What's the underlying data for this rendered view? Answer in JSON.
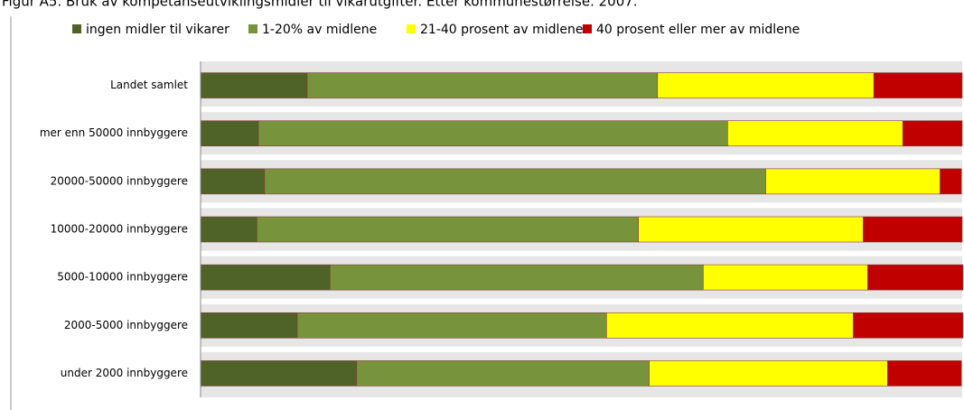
{
  "chart_data": {
    "type": "stacked_barh",
    "title": "Figur A5. Bruk av kompetanseutviklingsmidler til vikarutgifter. Etter kommunestørrelse. 2007.",
    "categories": [
      "Landet samlet",
      "mer enn 50000 innbyggere",
      "20000-50000 innbyggere",
      "10000-20000 innbyggere",
      "5000-10000 innbyggere",
      "2000-5000 innbyggere",
      "under 2000 innbyggere"
    ],
    "series": [
      {
        "name": "ingen midler til vikarer",
        "color": "#4f6228",
        "values": [
          14.0,
          7.6,
          8.4,
          7.4,
          17.0,
          12.7,
          20.5
        ]
      },
      {
        "name": "1-20% av midlene",
        "color": "#77933c",
        "values": [
          46.0,
          61.6,
          65.8,
          50.1,
          49.0,
          40.6,
          38.4
        ]
      },
      {
        "name": "21-40 prosent av midlene",
        "color": "#ffff00",
        "values": [
          28.4,
          23.0,
          22.9,
          29.5,
          21.6,
          32.4,
          31.3
        ]
      },
      {
        "name": "40 prosent eller mer av midlene",
        "color": "#c00000",
        "values": [
          11.6,
          7.8,
          2.8,
          13.0,
          12.5,
          14.4,
          9.7
        ]
      }
    ],
    "xlim": [
      0,
      100
    ],
    "legend": "top"
  }
}
